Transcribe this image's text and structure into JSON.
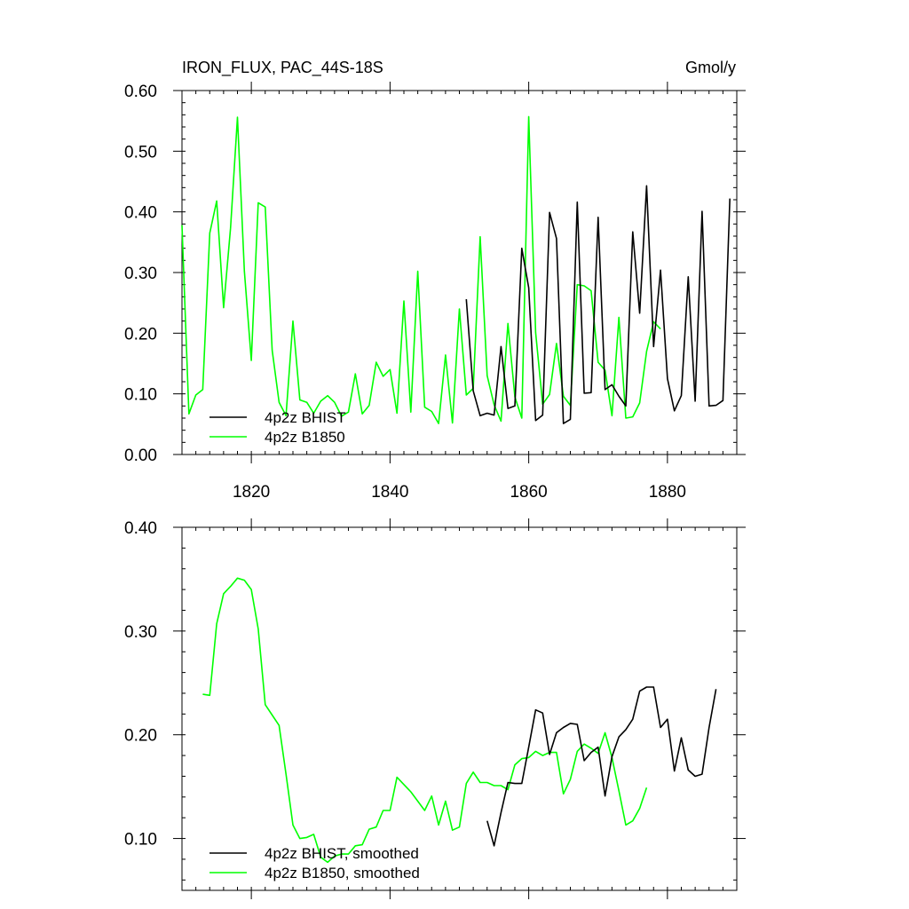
{
  "header": {
    "title": "IRON_FLUX, PAC_44S-18S",
    "units": "Gmol/y"
  },
  "colors": {
    "bhist": "#000000",
    "b1850": "#00ff00"
  },
  "chart_data": [
    {
      "type": "line",
      "title": "IRON_FLUX, PAC_44S-18S",
      "units": "Gmol/y",
      "xlim": [
        1810,
        1890
      ],
      "ylim": [
        0,
        0.6
      ],
      "x_ticks": [
        1820,
        1840,
        1860,
        1880
      ],
      "x_tick_labels": [
        "1820",
        "1840",
        "1860",
        "1880"
      ],
      "y_ticks": [
        0,
        0.1,
        0.2,
        0.3,
        0.4,
        0.5,
        0.6
      ],
      "y_tick_labels": [
        "0.00",
        "0.10",
        "0.20",
        "0.30",
        "0.40",
        "0.50",
        "0.60"
      ],
      "legend": "bottom-left",
      "grid": false,
      "series": [
        {
          "name": "4p2z BHIST",
          "color": "#000000",
          "x": [
            1851,
            1852,
            1853,
            1854,
            1855,
            1856,
            1857,
            1858,
            1859,
            1860,
            1861,
            1862,
            1863,
            1864,
            1865,
            1866,
            1867,
            1868,
            1869,
            1870,
            1871,
            1872,
            1873,
            1874,
            1875,
            1876,
            1877,
            1878,
            1879,
            1880,
            1881,
            1882,
            1883,
            1884,
            1885,
            1886,
            1887,
            1888,
            1889
          ],
          "y": [
            0.256,
            0.105,
            0.064,
            0.068,
            0.065,
            0.178,
            0.076,
            0.08,
            0.34,
            0.275,
            0.056,
            0.065,
            0.399,
            0.356,
            0.051,
            0.058,
            0.416,
            0.101,
            0.102,
            0.391,
            0.107,
            0.115,
            0.096,
            0.08,
            0.367,
            0.233,
            0.443,
            0.178,
            0.304,
            0.125,
            0.072,
            0.097,
            0.293,
            0.088,
            0.401,
            0.08,
            0.081,
            0.089,
            0.422
          ]
        },
        {
          "name": "4p2z B1850",
          "color": "#00ff00",
          "x": [
            1810,
            1811,
            1812,
            1813,
            1814,
            1815,
            1816,
            1817,
            1818,
            1819,
            1820,
            1821,
            1822,
            1823,
            1824,
            1825,
            1826,
            1827,
            1828,
            1829,
            1830,
            1831,
            1832,
            1833,
            1834,
            1835,
            1836,
            1837,
            1838,
            1839,
            1840,
            1841,
            1842,
            1843,
            1844,
            1845,
            1846,
            1847,
            1848,
            1849,
            1850,
            1851,
            1852,
            1853,
            1854,
            1855,
            1856,
            1857,
            1858,
            1859,
            1860,
            1861,
            1862,
            1863,
            1864,
            1865,
            1866,
            1867,
            1868,
            1869,
            1870,
            1871,
            1872,
            1873,
            1874,
            1875,
            1876,
            1877,
            1878,
            1879
          ],
          "y": [
            0.378,
            0.067,
            0.098,
            0.107,
            0.365,
            0.418,
            0.242,
            0.373,
            0.556,
            0.302,
            0.155,
            0.415,
            0.408,
            0.172,
            0.086,
            0.064,
            0.22,
            0.09,
            0.086,
            0.068,
            0.088,
            0.097,
            0.086,
            0.063,
            0.07,
            0.133,
            0.067,
            0.081,
            0.152,
            0.129,
            0.14,
            0.068,
            0.253,
            0.07,
            0.302,
            0.078,
            0.071,
            0.051,
            0.164,
            0.052,
            0.24,
            0.098,
            0.109,
            0.359,
            0.13,
            0.082,
            0.055,
            0.216,
            0.095,
            0.06,
            0.557,
            0.201,
            0.083,
            0.099,
            0.183,
            0.096,
            0.081,
            0.28,
            0.278,
            0.27,
            0.152,
            0.139,
            0.064,
            0.226,
            0.06,
            0.062,
            0.085,
            0.17,
            0.219,
            0.207
          ]
        }
      ]
    },
    {
      "type": "line",
      "title": "",
      "xlim": [
        1810,
        1890
      ],
      "ylim": [
        0.05,
        0.4
      ],
      "x_ticks": [
        1820,
        1840,
        1860,
        1880
      ],
      "y_ticks": [
        0.1,
        0.2,
        0.3,
        0.4
      ],
      "y_tick_labels": [
        "0.10",
        "0.20",
        "0.30",
        "0.40"
      ],
      "legend": "bottom-left",
      "grid": false,
      "series": [
        {
          "name": "4p2z BHIST, smoothed",
          "color": "#000000",
          "x": [
            1854,
            1855,
            1856,
            1857,
            1858,
            1859,
            1860,
            1861,
            1862,
            1863,
            1864,
            1865,
            1866,
            1867,
            1868,
            1869,
            1870,
            1871,
            1872,
            1873,
            1874,
            1875,
            1876,
            1877,
            1878,
            1879,
            1880,
            1881,
            1882,
            1883,
            1884,
            1885,
            1886,
            1887
          ],
          "y": [
            0.117,
            0.093,
            0.125,
            0.154,
            0.153,
            0.153,
            0.188,
            0.224,
            0.221,
            0.181,
            0.202,
            0.207,
            0.211,
            0.21,
            0.175,
            0.183,
            0.188,
            0.141,
            0.179,
            0.198,
            0.205,
            0.215,
            0.242,
            0.246,
            0.246,
            0.207,
            0.215,
            0.165,
            0.197,
            0.166,
            0.16,
            0.162,
            0.207,
            0.244
          ]
        },
        {
          "name": "4p2z B1850, smoothed",
          "color": "#00ff00",
          "x": [
            1813,
            1814,
            1815,
            1816,
            1817,
            1818,
            1819,
            1820,
            1821,
            1822,
            1823,
            1824,
            1825,
            1826,
            1827,
            1828,
            1829,
            1830,
            1831,
            1832,
            1833,
            1834,
            1835,
            1836,
            1837,
            1838,
            1839,
            1840,
            1841,
            1842,
            1843,
            1844,
            1845,
            1846,
            1847,
            1848,
            1849,
            1850,
            1851,
            1852,
            1853,
            1854,
            1855,
            1856,
            1857,
            1858,
            1859,
            1860,
            1861,
            1862,
            1863,
            1864,
            1865,
            1866,
            1867,
            1868,
            1869,
            1870,
            1871,
            1872,
            1873,
            1874,
            1875,
            1876,
            1877
          ],
          "y": [
            0.239,
            0.238,
            0.307,
            0.336,
            0.343,
            0.351,
            0.349,
            0.34,
            0.302,
            0.229,
            0.219,
            0.209,
            0.162,
            0.113,
            0.1,
            0.101,
            0.104,
            0.082,
            0.077,
            0.083,
            0.085,
            0.085,
            0.093,
            0.094,
            0.109,
            0.111,
            0.127,
            0.127,
            0.159,
            0.152,
            0.145,
            0.136,
            0.127,
            0.141,
            0.113,
            0.136,
            0.108,
            0.111,
            0.153,
            0.164,
            0.154,
            0.154,
            0.151,
            0.151,
            0.147,
            0.171,
            0.177,
            0.178,
            0.184,
            0.18,
            0.183,
            0.183,
            0.143,
            0.157,
            0.184,
            0.191,
            0.187,
            0.182,
            0.202,
            0.178,
            0.146,
            0.113,
            0.117,
            0.129,
            0.149
          ]
        }
      ]
    }
  ]
}
